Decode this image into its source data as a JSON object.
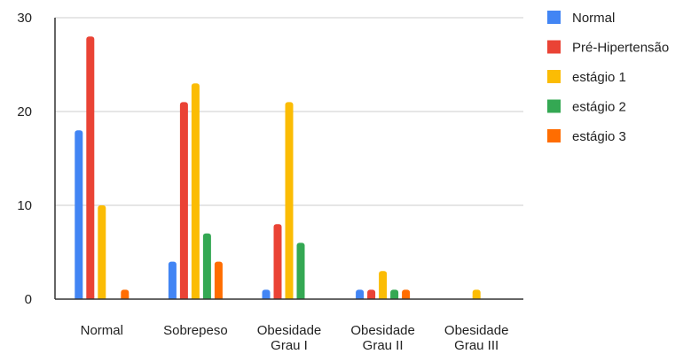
{
  "chart_data": {
    "type": "bar",
    "categories": [
      [
        "Normal"
      ],
      [
        "Sobrepeso"
      ],
      [
        "Obesidade",
        "Grau I"
      ],
      [
        "Obesidade",
        "Grau II"
      ],
      [
        "Obesidade",
        "Grau III"
      ]
    ],
    "series": [
      {
        "name": "Normal",
        "color": "#4285f4",
        "values": [
          18,
          4,
          1,
          1,
          0
        ]
      },
      {
        "name": "Pré-Hipertensão",
        "color": "#ea4335",
        "values": [
          28,
          21,
          8,
          1,
          0
        ]
      },
      {
        "name": "estágio 1",
        "color": "#fbbc04",
        "values": [
          10,
          23,
          21,
          3,
          1
        ]
      },
      {
        "name": "estágio 2",
        "color": "#34a853",
        "values": [
          0,
          7,
          6,
          1,
          0
        ]
      },
      {
        "name": "estágio 3",
        "color": "#ff6d01",
        "values": [
          1,
          4,
          0,
          1,
          0
        ]
      }
    ],
    "y_ticks": [
      0,
      10,
      20,
      30
    ],
    "ylim": [
      0,
      30
    ],
    "grid": true,
    "legend_position": "right"
  }
}
